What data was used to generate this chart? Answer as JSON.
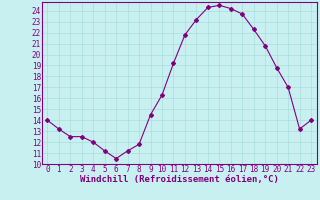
{
  "x": [
    0,
    1,
    2,
    3,
    4,
    5,
    6,
    7,
    8,
    9,
    10,
    11,
    12,
    13,
    14,
    15,
    16,
    17,
    18,
    19,
    20,
    21,
    22,
    23
  ],
  "y": [
    14,
    13.2,
    12.5,
    12.5,
    12,
    11.2,
    10.5,
    11.2,
    11.8,
    14.5,
    16.3,
    19.2,
    21.8,
    23.2,
    24.3,
    24.5,
    24.2,
    23.7,
    22.3,
    20.8,
    18.8,
    17,
    13.2,
    14
  ],
  "line_color": "#800080",
  "marker": "D",
  "marker_size": 2,
  "bg_color": "#c8f0f0",
  "grid_color": "#aadddd",
  "xlabel": "Windchill (Refroidissement éolien,°C)",
  "ylabel_ticks": [
    10,
    11,
    12,
    13,
    14,
    15,
    16,
    17,
    18,
    19,
    20,
    21,
    22,
    23,
    24
  ],
  "xlim": [
    -0.5,
    23.5
  ],
  "ylim": [
    10,
    24.8
  ],
  "xticks": [
    0,
    1,
    2,
    3,
    4,
    5,
    6,
    7,
    8,
    9,
    10,
    11,
    12,
    13,
    14,
    15,
    16,
    17,
    18,
    19,
    20,
    21,
    22,
    23
  ],
  "tick_fontsize": 5.5,
  "xlabel_fontsize": 6.5,
  "label_color": "#800080"
}
